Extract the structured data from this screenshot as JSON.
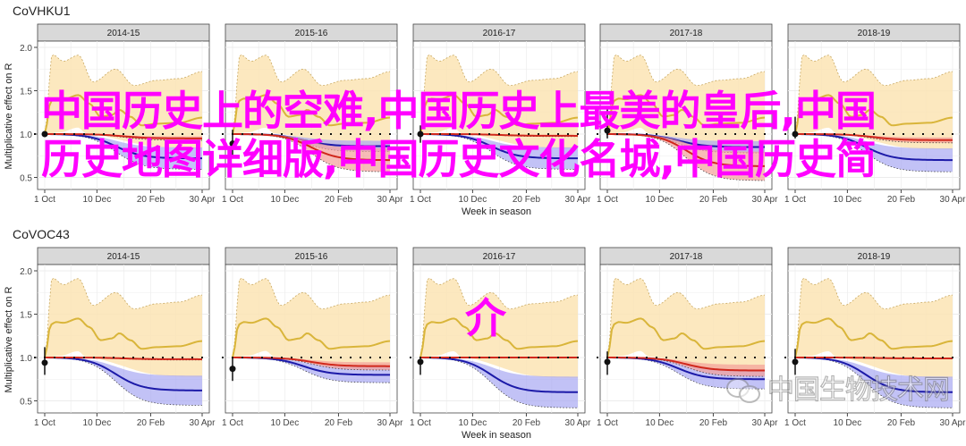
{
  "chart_data": [
    {
      "type": "line",
      "title": "CoVHKU1",
      "xlabel": "Week in season",
      "ylabel": "Multiplicative effect on R",
      "ylim": [
        0.4,
        2.05
      ],
      "yticks": [
        "0.5",
        "1.0",
        "1.5",
        "2.0"
      ],
      "ytick_values": [
        0.5,
        1.0,
        1.5,
        2.0
      ],
      "xticks": [
        "1 Oct",
        "10 Dec",
        "20 Feb",
        "30 Apr"
      ],
      "xtick_days": [
        0,
        70,
        142,
        211
      ],
      "reference_line": 1.0,
      "grid": true,
      "panels": [
        {
          "season": "2014-15",
          "point": 1.0,
          "point_ci": [
            1.0,
            1.0
          ],
          "red_end": 0.95,
          "blue_end": 0.72
        },
        {
          "season": "2015-16",
          "point": 0.89,
          "point_ci": [
            0.75,
            1.05
          ],
          "red_end": 0.7,
          "blue_end": 0.86
        },
        {
          "season": "2016-17",
          "point": 1.0,
          "point_ci": [
            0.9,
            1.1
          ],
          "red_end": 0.98,
          "blue_end": 0.72
        },
        {
          "season": "2017-18",
          "point": 1.04,
          "point_ci": [
            0.95,
            1.3
          ],
          "red_end": 0.63,
          "blue_end": 0.85
        },
        {
          "season": "2018-19",
          "point": 1.0,
          "point_ci": [
            0.95,
            1.2
          ],
          "red_end": 0.93,
          "blue_end": 0.7
        }
      ]
    },
    {
      "type": "line",
      "title": "CoVOC43",
      "xlabel": "Week in season",
      "ylabel": "Multiplicative effect on R",
      "ylim": [
        0.4,
        2.05
      ],
      "yticks": [
        "0.5",
        "1.0",
        "1.5",
        "2.0"
      ],
      "ytick_values": [
        0.5,
        1.0,
        1.5,
        2.0
      ],
      "xticks": [
        "1 Oct",
        "10 Dec",
        "20 Feb",
        "30 Apr"
      ],
      "xtick_days": [
        0,
        70,
        142,
        211
      ],
      "reference_line": 1.0,
      "grid": true,
      "panels": [
        {
          "season": "2014-15",
          "point": 0.94,
          "point_ci": [
            0.8,
            1.12
          ],
          "red_end": 0.98,
          "blue_end": 0.62
        },
        {
          "season": "2015-16",
          "point": 0.87,
          "point_ci": [
            0.73,
            1.0
          ],
          "red_end": 0.9,
          "blue_end": 0.8
        },
        {
          "season": "2016-17",
          "point": 0.95,
          "point_ci": [
            0.8,
            1.0
          ],
          "red_end": 1.0,
          "blue_end": 0.6
        },
        {
          "season": "2017-18",
          "point": 0.95,
          "point_ci": [
            0.8,
            1.07
          ],
          "red_end": 0.85,
          "blue_end": 0.75
        },
        {
          "season": "2018-19",
          "point": 0.95,
          "point_ci": [
            0.8,
            1.1
          ],
          "red_end": 0.99,
          "blue_end": 0.6
        }
      ]
    }
  ],
  "series_shared": {
    "yellow_line": [
      [
        0,
        1.0
      ],
      [
        8,
        1.38
      ],
      [
        15,
        1.41
      ],
      [
        25,
        1.4
      ],
      [
        45,
        1.45
      ],
      [
        60,
        1.35
      ],
      [
        75,
        1.2
      ],
      [
        90,
        1.22
      ],
      [
        100,
        1.28
      ],
      [
        115,
        1.2
      ],
      [
        130,
        1.1
      ],
      [
        150,
        1.12
      ],
      [
        180,
        1.13
      ],
      [
        211,
        1.19
      ]
    ],
    "yellow_upper": [
      [
        0,
        1.0
      ],
      [
        10,
        1.92
      ],
      [
        25,
        1.84
      ],
      [
        45,
        1.91
      ],
      [
        65,
        1.6
      ],
      [
        95,
        1.75
      ],
      [
        120,
        1.56
      ],
      [
        150,
        1.62
      ],
      [
        180,
        1.64
      ],
      [
        211,
        1.72
      ]
    ],
    "yellow_lower": [
      [
        0,
        1.0
      ],
      [
        20,
        1.02
      ],
      [
        45,
        1.08
      ],
      [
        55,
        1.02
      ],
      [
        100,
        1.0
      ],
      [
        211,
        1.0
      ]
    ]
  },
  "colors": {
    "yellow": "#d9b53a",
    "yellow_band": "#fbe4b4",
    "red": "#d0281c",
    "red_band": "#f4a098",
    "blue": "#1c1aa8",
    "blue_band": "#a8a8f2"
  },
  "overlay": {
    "line1": "中国历史上的空难,中国历史上最美的皇后,中国",
    "line2": "历史地图详细版,中国历史文化名城,中国历史简",
    "line3": "介"
  },
  "watermark": {
    "text": "中国生物技术网"
  }
}
